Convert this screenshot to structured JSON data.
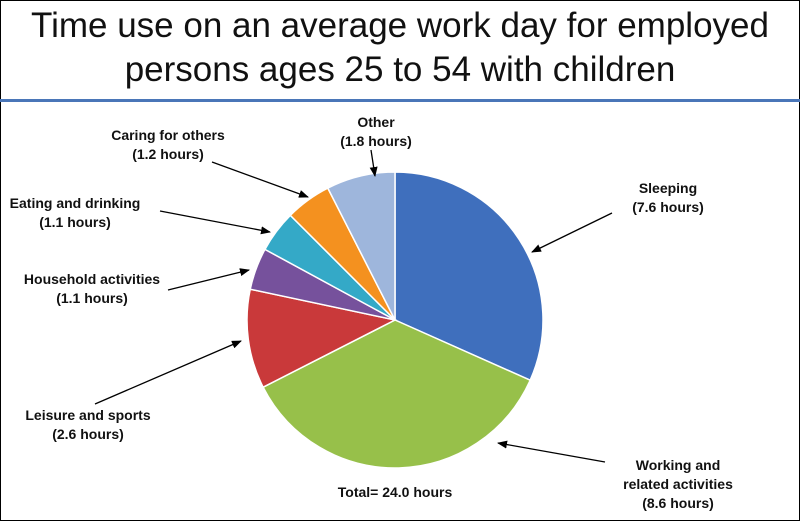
{
  "chart_data": {
    "type": "pie",
    "title": [
      "Time use on an average work day for employed",
      "persons ages 25 to 54 with children"
    ],
    "total_label": "Total= 24.0 hours",
    "slices": [
      {
        "label": [
          "Sleeping",
          "(7.6 hours)"
        ],
        "value": 7.6,
        "color": "#3f6fbd"
      },
      {
        "label": [
          "Working and",
          "related activities",
          "(8.6 hours)"
        ],
        "value": 8.6,
        "color": "#97c04a"
      },
      {
        "label": [
          "Leisure and sports",
          "(2.6 hours)"
        ],
        "value": 2.6,
        "color": "#c9393a"
      },
      {
        "label": [
          "Household activities",
          "(1.1 hours)"
        ],
        "value": 1.1,
        "color": "#76519c"
      },
      {
        "label": [
          "Eating and drinking",
          "(1.1 hours)"
        ],
        "value": 1.1,
        "color": "#34a9c7"
      },
      {
        "label": [
          "Caring for others",
          "(1.2 hours)"
        ],
        "value": 1.2,
        "color": "#f4911f"
      },
      {
        "label": [
          "Other",
          "(1.8 hours)"
        ],
        "value": 1.8,
        "color": "#9eb6dc"
      }
    ]
  }
}
